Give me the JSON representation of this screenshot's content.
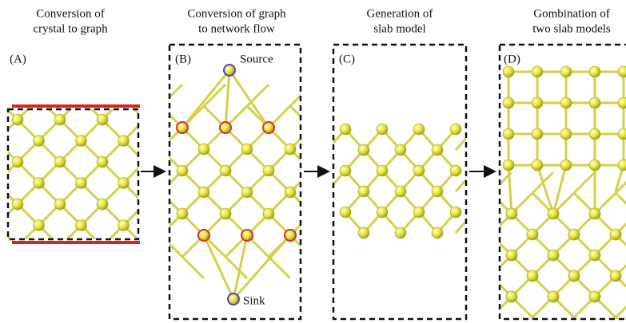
{
  "panels": [
    {
      "title_lines": [
        "Conversion of",
        "crystal to graph"
      ],
      "label": "(A)"
    },
    {
      "title_lines": [
        "Conversion of graph",
        "to network flow"
      ],
      "label": "(B)",
      "source": "Source",
      "sink": "Sink"
    },
    {
      "title_lines": [
        "Generation of",
        "slab model"
      ],
      "label": "(C)"
    },
    {
      "title_lines": [
        "Gombination of",
        "two slab models"
      ],
      "label": "(D)"
    }
  ]
}
